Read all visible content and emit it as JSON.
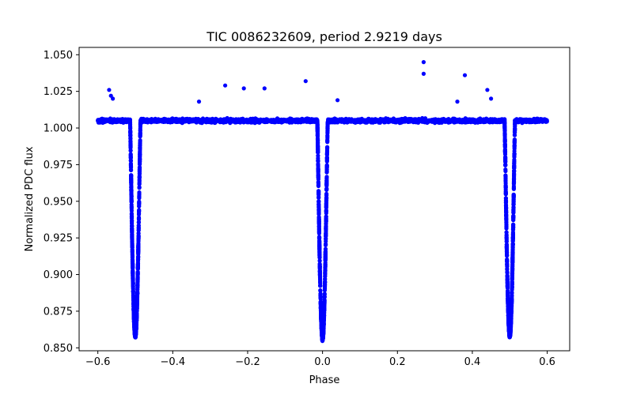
{
  "chart_data": {
    "type": "scatter",
    "title": "TIC 0086232609, period 2.9219 days",
    "xlabel": "Phase",
    "ylabel": "Normalized PDC flux",
    "xlim": [
      -0.65,
      0.66
    ],
    "ylim": [
      0.848,
      1.055
    ],
    "x_ticks": [
      -0.6,
      -0.4,
      -0.2,
      0.0,
      0.2,
      0.4,
      0.6
    ],
    "x_tick_labels": [
      "−0.6",
      "−0.4",
      "−0.2",
      "0.0",
      "0.2",
      "0.4",
      "0.6"
    ],
    "y_ticks": [
      0.85,
      0.875,
      0.9,
      0.925,
      0.95,
      0.975,
      1.0,
      1.025,
      1.05
    ],
    "y_tick_labels": [
      "0.850",
      "0.875",
      "0.900",
      "0.925",
      "0.950",
      "0.975",
      "1.000",
      "1.025",
      "1.050"
    ],
    "grid": false,
    "marker_color": "#0000ff",
    "series": [
      {
        "x_range": [
          -0.6,
          0.6
        ],
        "baseline_flux": 1.005,
        "eclipses": [
          {
            "center_phase": -0.5,
            "min_flux": 0.858
          },
          {
            "center_phase": 0.0,
            "min_flux": 0.856
          },
          {
            "center_phase": 0.5,
            "min_flux": 0.858
          }
        ],
        "outliers": [
          {
            "x": -0.57,
            "y": 1.026
          },
          {
            "x": -0.565,
            "y": 1.022
          },
          {
            "x": -0.56,
            "y": 1.02
          },
          {
            "x": -0.26,
            "y": 1.029
          },
          {
            "x": -0.21,
            "y": 1.027
          },
          {
            "x": -0.155,
            "y": 1.027
          },
          {
            "x": -0.045,
            "y": 1.032
          },
          {
            "x": 0.27,
            "y": 1.045
          },
          {
            "x": 0.27,
            "y": 1.037
          },
          {
            "x": 0.38,
            "y": 1.036
          },
          {
            "x": 0.44,
            "y": 1.026
          },
          {
            "x": 0.45,
            "y": 1.02
          },
          {
            "x": -0.33,
            "y": 1.018
          },
          {
            "x": 0.04,
            "y": 1.019
          },
          {
            "x": 0.36,
            "y": 1.018
          }
        ]
      }
    ]
  }
}
